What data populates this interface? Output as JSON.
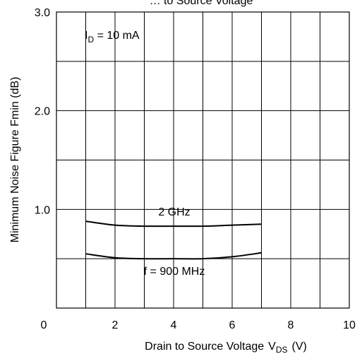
{
  "chart_data": {
    "type": "line",
    "title": "… to Source Voltage",
    "xlabel": "Drain to Source Voltage",
    "xlabel_sub_base": "V",
    "xlabel_sub": "DS",
    "xlabel_unit": "(V)",
    "ylabel": "Minimum Noise Figure  Fmin  (dB)",
    "xlim": [
      0,
      10
    ],
    "ylim": [
      0,
      3.0
    ],
    "grid": true,
    "x_ticks": [
      0,
      2,
      4,
      6,
      8,
      10
    ],
    "x_tick_labels": [
      "0",
      "2",
      "4",
      "6",
      "8",
      "10"
    ],
    "y_tick_labels": [
      {
        "value": 1.0,
        "label": "1.0"
      },
      {
        "value": 2.0,
        "label": "2.0"
      },
      {
        "value": 3.0,
        "label": "3.0"
      }
    ],
    "x_grid_step": 1,
    "y_grid_step": 0.5,
    "annotations": {
      "condition_base": "I",
      "condition_sub": "D",
      "condition_rest": " = 10 mA",
      "series_2ghz": "2 GHz",
      "series_900mhz": "f = 900 MHz"
    },
    "series": [
      {
        "id": "2ghz",
        "x": [
          1,
          2,
          3,
          4,
          5,
          6,
          7
        ],
        "values": [
          0.88,
          0.84,
          0.83,
          0.83,
          0.83,
          0.84,
          0.85
        ]
      },
      {
        "id": "900mhz",
        "x": [
          1,
          2,
          3,
          4,
          5,
          6,
          7
        ],
        "values": [
          0.55,
          0.51,
          0.5,
          0.5,
          0.5,
          0.52,
          0.56
        ]
      }
    ]
  }
}
